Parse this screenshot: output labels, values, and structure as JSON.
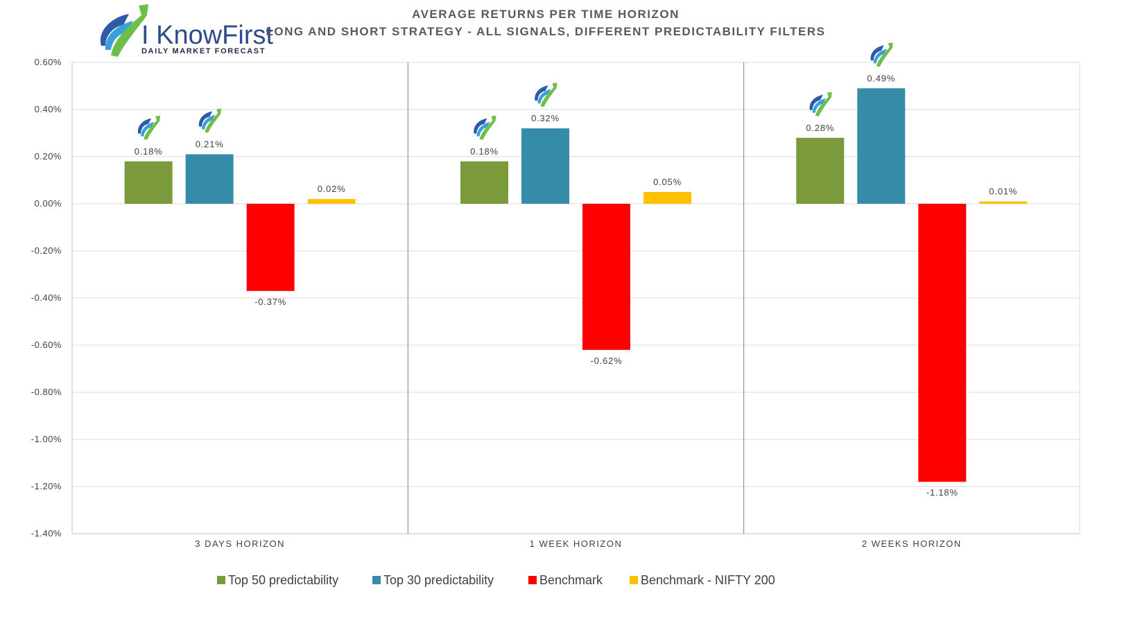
{
  "chart_data": {
    "type": "bar",
    "title": "AVERAGE RETURNS PER TIME HORIZON",
    "subtitle": "LONG AND SHORT STRATEGY - ALL SIGNALS, DIFFERENT PREDICTABILITY FILTERS",
    "categories": [
      "3 DAYS HORIZON",
      "1 WEEK HORIZON",
      "2 WEEKS HORIZON"
    ],
    "series": [
      {
        "name": "Top 50 predictability",
        "color": "#7a9a3c",
        "values": [
          0.18,
          0.18,
          0.28
        ],
        "labels": [
          "0.18%",
          "0.18%",
          "0.28%"
        ]
      },
      {
        "name": "Top 30 predictability",
        "color": "#348ca8",
        "values": [
          0.21,
          0.32,
          0.49
        ],
        "labels": [
          "0.21%",
          "0.32%",
          "0.49%"
        ]
      },
      {
        "name": "Benchmark",
        "color": "#ff0000",
        "values": [
          -0.37,
          -0.62,
          -1.18
        ],
        "labels": [
          "-0.37%",
          "-0.62%",
          "-1.18%"
        ]
      },
      {
        "name": "Benchmark - NIFTY 200",
        "color": "#ffc000",
        "values": [
          0.02,
          0.05,
          0.01
        ],
        "labels": [
          "0.02%",
          "0.05%",
          "0.01%"
        ]
      }
    ],
    "ylim": [
      -1.4,
      0.6
    ],
    "yticks": [
      "0.60%",
      "0.40%",
      "0.20%",
      "0.00%",
      "-0.20%",
      "-0.40%",
      "-0.60%",
      "-0.80%",
      "-1.00%",
      "-1.20%",
      "-1.40%"
    ],
    "ytick_values": [
      0.6,
      0.4,
      0.2,
      0.0,
      -0.2,
      -0.4,
      -0.6,
      -0.8,
      -1.0,
      -1.2,
      -1.4
    ],
    "grid": true,
    "legend_position": "bottom",
    "icon_markers": [
      [
        true,
        true,
        false,
        false
      ],
      [
        true,
        true,
        false,
        false
      ],
      [
        true,
        true,
        false,
        false
      ]
    ]
  },
  "brand": {
    "name": "I KnowFirst",
    "tagline": "Daily Market Forecast",
    "logo_icon": "arrow-logo-icon"
  }
}
